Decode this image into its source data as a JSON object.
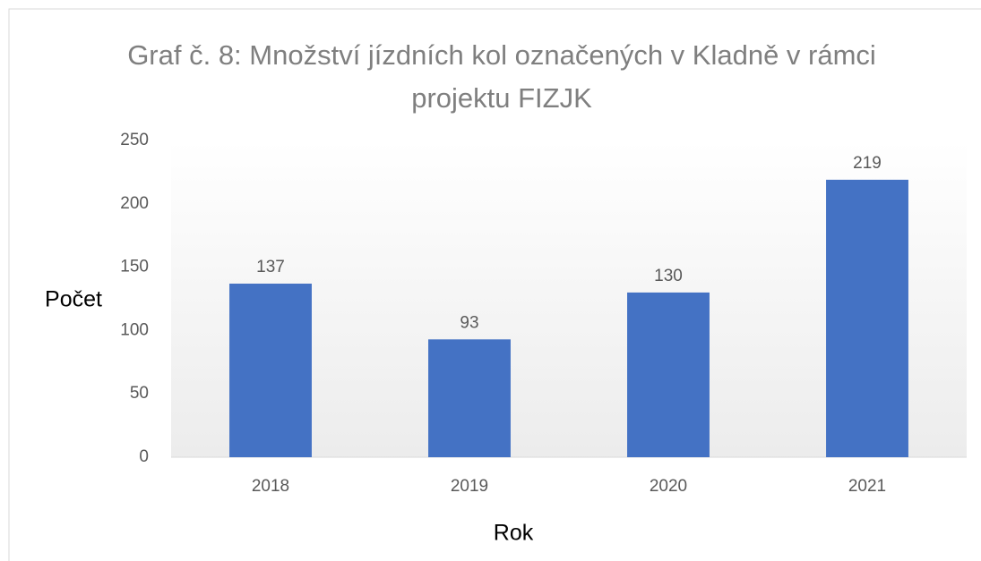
{
  "chart_data": {
    "type": "bar",
    "title": "Graf č. 8: Množství jízdních kol označených v Kladně v rámci projektu FIZJK",
    "x_label": "Rok",
    "y_label": "Počet",
    "categories": [
      "2018",
      "2019",
      "2020",
      "2021"
    ],
    "values": [
      137,
      93,
      130,
      219
    ],
    "color": "#4472c4",
    "ylim": [
      0,
      250
    ],
    "yticks": [
      0,
      50,
      100,
      150,
      200,
      250
    ],
    "grid": false,
    "data_labels": true
  }
}
